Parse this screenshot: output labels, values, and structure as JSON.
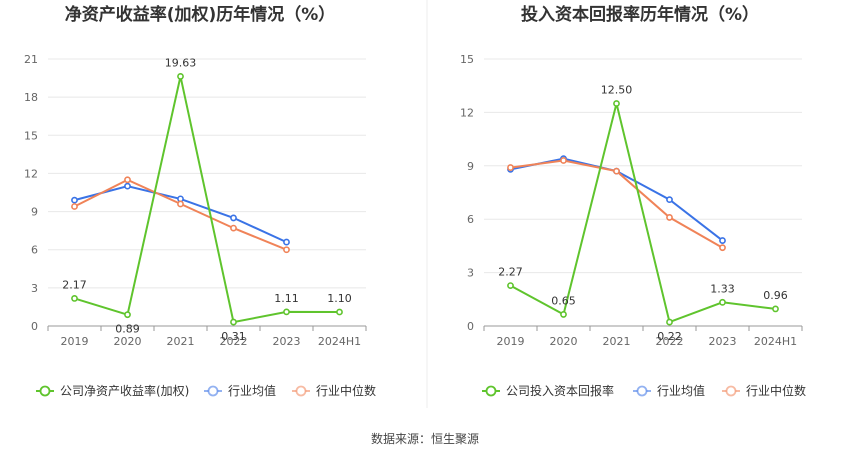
{
  "source_label": "数据来源：恒生聚源",
  "colors": {
    "company": "#5fc42d",
    "industry_avg": "#3a73e6",
    "industry_median": "#f08358",
    "grid": "#e8e8e8",
    "axis": "#999999"
  },
  "chart_data": [
    {
      "type": "line",
      "title": "净资产收益率(加权)历年情况（%）",
      "categories": [
        "2019",
        "2020",
        "2021",
        "2022",
        "2023",
        "2024H1"
      ],
      "y_ticks": [
        "0",
        "3",
        "6",
        "9",
        "12",
        "15",
        "18",
        "21"
      ],
      "ylim": [
        0,
        21
      ],
      "grid": true,
      "legend_position": "bottom",
      "series": [
        {
          "name": "公司净资产收益率(加权)",
          "key": "company",
          "values": [
            2.17,
            0.89,
            19.63,
            0.31,
            1.11,
            1.1
          ],
          "labels": [
            "2.17",
            "0.89",
            "19.63",
            "0.31",
            "1.11",
            "1.10"
          ]
        },
        {
          "name": "行业均值",
          "key": "industry_avg",
          "values": [
            9.9,
            11.0,
            10.0,
            8.5,
            6.6,
            null
          ]
        },
        {
          "name": "行业中位数",
          "key": "industry_median",
          "values": [
            9.4,
            11.5,
            9.6,
            7.7,
            6.0,
            null
          ]
        }
      ]
    },
    {
      "type": "line",
      "title": "投入资本回报率历年情况（%）",
      "categories": [
        "2019",
        "2020",
        "2021",
        "2022",
        "2023",
        "2024H1"
      ],
      "y_ticks": [
        "0",
        "3",
        "6",
        "9",
        "12",
        "15"
      ],
      "ylim": [
        0,
        15
      ],
      "grid": true,
      "legend_position": "bottom",
      "series": [
        {
          "name": "公司投入资本回报率",
          "key": "company",
          "values": [
            2.27,
            0.65,
            12.5,
            0.22,
            1.33,
            0.96
          ],
          "labels": [
            "2.27",
            "0.65",
            "12.50",
            "0.22",
            "1.33",
            "0.96"
          ]
        },
        {
          "name": "行业均值",
          "key": "industry_avg",
          "values": [
            8.8,
            9.4,
            8.7,
            7.1,
            4.8,
            null
          ]
        },
        {
          "name": "行业中位数",
          "key": "industry_median",
          "values": [
            8.9,
            9.3,
            8.7,
            6.1,
            4.4,
            null
          ]
        }
      ]
    }
  ]
}
